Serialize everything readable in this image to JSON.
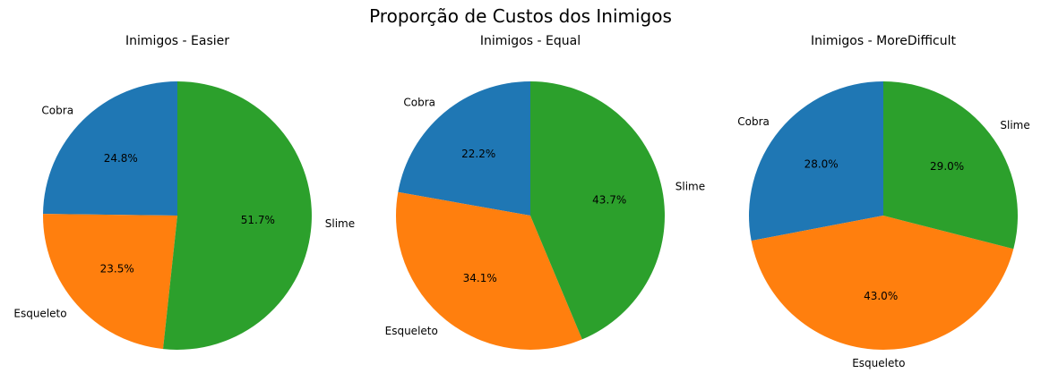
{
  "figure": {
    "suptitle": "Proporção de Custos dos Inimigos"
  },
  "chart_data": [
    {
      "type": "pie",
      "title": "Inimigos - Easier",
      "labels": [
        "Cobra",
        "Esqueleto",
        "Slime"
      ],
      "values": [
        24.8,
        23.5,
        51.7
      ],
      "value_labels": [
        "24.8%",
        "23.5%",
        "51.7%"
      ],
      "colors": [
        "#1f77b4",
        "#ff7f0e",
        "#2ca02c"
      ],
      "start_angle_deg": 90,
      "direction": "counterclockwise"
    },
    {
      "type": "pie",
      "title": "Inimigos - Equal",
      "labels": [
        "Cobra",
        "Esqueleto",
        "Slime"
      ],
      "values": [
        22.2,
        34.1,
        43.7
      ],
      "value_labels": [
        "22.2%",
        "34.1%",
        "43.7%"
      ],
      "colors": [
        "#1f77b4",
        "#ff7f0e",
        "#2ca02c"
      ],
      "start_angle_deg": 90,
      "direction": "counterclockwise"
    },
    {
      "type": "pie",
      "title": "Inimigos - MoreDifficult",
      "labels": [
        "Cobra",
        "Esqueleto",
        "Slime"
      ],
      "values": [
        28.0,
        43.0,
        29.0
      ],
      "value_labels": [
        "28.0%",
        "43.0%",
        "29.0%"
      ],
      "colors": [
        "#1f77b4",
        "#ff7f0e",
        "#2ca02c"
      ],
      "start_angle_deg": 90,
      "direction": "counterclockwise"
    }
  ]
}
